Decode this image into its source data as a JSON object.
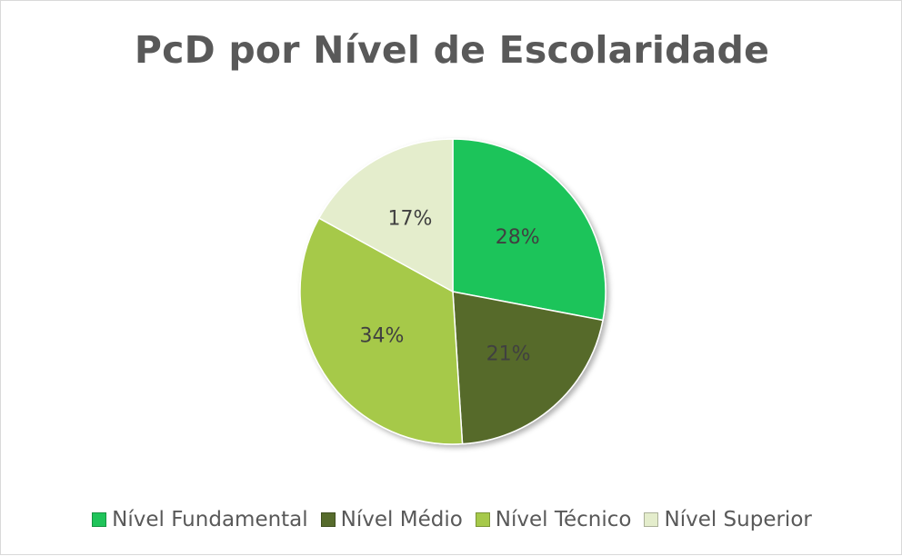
{
  "chart_data": {
    "type": "pie",
    "title": "PcD por Nível de Escolaridade",
    "categories": [
      "Nível Fundamental",
      "Nível Médio",
      "Nível Técnico",
      "Nível Superior"
    ],
    "values": [
      28,
      21,
      34,
      17
    ],
    "labels": [
      "28%",
      "21%",
      "34%",
      "17%"
    ],
    "unit": "%",
    "colors": [
      "#1fc45a",
      "#566b2c",
      "#a6c94a",
      "#e4edcc"
    ],
    "label_color": "#404040",
    "start_angle_deg": 0,
    "direction": "clockwise",
    "legend_position": "bottom"
  }
}
